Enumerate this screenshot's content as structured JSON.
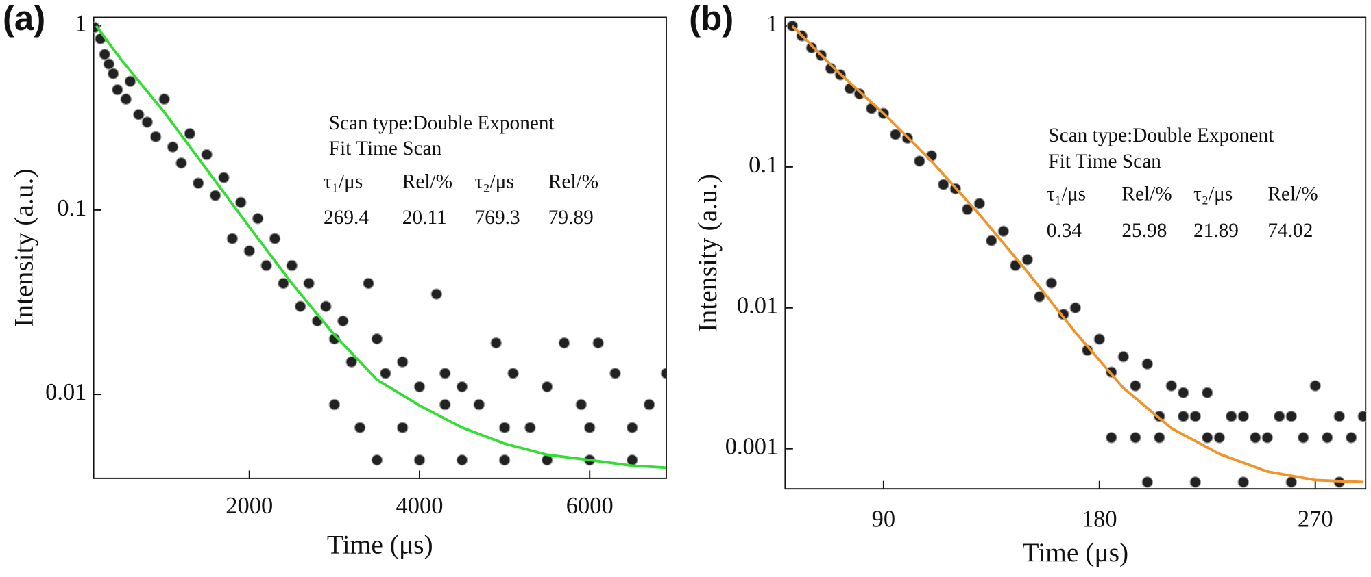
{
  "chart_data": [
    {
      "type": "scatter",
      "panel_label": "(a)",
      "y_label": "Intensity (a.u.)",
      "x_label": "Time (μs)",
      "log_y": true,
      "xlim": [
        170,
        6900
      ],
      "ylim": [
        0.0035,
        1.11
      ],
      "xticks": [
        2000,
        4000,
        6000
      ],
      "yticks": [
        1,
        0.1,
        0.01
      ],
      "scatter": {
        "color": "#222222",
        "x": [
          180,
          250,
          300,
          350,
          400,
          450,
          550,
          600,
          700,
          800,
          900,
          1000,
          1100,
          1200,
          1300,
          1400,
          1500,
          1600,
          1700,
          1800,
          1900,
          2000,
          2100,
          2200,
          2300,
          2400,
          2500,
          2600,
          2700,
          2800,
          2900,
          3000,
          3100,
          3200,
          3400,
          3500,
          3600,
          3800,
          4000,
          4200,
          4300,
          4500,
          4700,
          4900,
          5100,
          5300,
          5500,
          5700,
          5900,
          6100,
          6300,
          6500,
          6700,
          6900,
          3500,
          4000,
          4500,
          5000,
          5500,
          6000,
          6500,
          3000,
          3300,
          3800,
          4300,
          5000,
          6000
        ],
        "values": [
          0.98,
          0.85,
          0.7,
          0.62,
          0.55,
          0.45,
          0.4,
          0.5,
          0.33,
          0.3,
          0.25,
          0.4,
          0.22,
          0.18,
          0.26,
          0.14,
          0.2,
          0.12,
          0.15,
          0.07,
          0.11,
          0.06,
          0.09,
          0.05,
          0.07,
          0.04,
          0.05,
          0.03,
          0.04,
          0.025,
          0.03,
          0.02,
          0.025,
          0.015,
          0.04,
          0.02,
          0.013,
          0.015,
          0.011,
          0.035,
          0.013,
          0.011,
          0.0088,
          0.019,
          0.013,
          0.0066,
          0.011,
          0.019,
          0.0088,
          0.019,
          0.013,
          0.0066,
          0.0088,
          0.013,
          0.0044,
          0.0044,
          0.0044,
          0.0044,
          0.0044,
          0.0044,
          0.0044,
          0.0088,
          0.0066,
          0.0066,
          0.0088,
          0.0066,
          0.0066
        ]
      },
      "fit": {
        "color": "#33dd33",
        "x": [
          200,
          500,
          1000,
          1500,
          2000,
          2500,
          3000,
          3500,
          4000,
          4500,
          5000,
          5500,
          6000,
          6500,
          6900
        ],
        "values": [
          1,
          0.65,
          0.34,
          0.166,
          0.081,
          0.04,
          0.021,
          0.012,
          0.0087,
          0.0066,
          0.0054,
          0.0047,
          0.0044,
          0.0041,
          0.004
        ]
      },
      "annotation": {
        "lines": [
          "Scan type:Double Exponent",
          "Fit Time Scan"
        ],
        "table": [
          [
            "τ₁/μs",
            "Rel/%",
            "τ₂/μs",
            "Rel/%"
          ],
          [
            269.4,
            20.11,
            769.3,
            79.89
          ]
        ]
      }
    },
    {
      "type": "scatter",
      "panel_label": "(b)",
      "y_label": "Intensity (a.u.)",
      "x_label": "Time (μs)",
      "log_y": true,
      "xlim": [
        49,
        291
      ],
      "ylim": [
        0.00052,
        1.15
      ],
      "xticks": [
        90,
        180,
        270
      ],
      "yticks": [
        1,
        0.1,
        0.01,
        0.001
      ],
      "scatter": {
        "color": "#222222",
        "x": [
          52,
          56,
          60,
          64,
          68,
          72,
          76,
          80,
          85,
          90,
          95,
          100,
          105,
          110,
          115,
          120,
          125,
          130,
          135,
          140,
          145,
          150,
          155,
          160,
          165,
          170,
          175,
          180,
          185,
          190,
          195,
          200,
          205,
          210,
          215,
          220,
          225,
          230,
          240,
          250,
          260,
          270,
          280,
          290,
          185,
          195,
          205,
          215,
          225,
          235,
          245,
          255,
          265,
          275,
          285,
          200,
          220,
          240,
          260,
          280
        ],
        "values": [
          1.0,
          0.85,
          0.7,
          0.62,
          0.5,
          0.45,
          0.36,
          0.33,
          0.26,
          0.24,
          0.17,
          0.16,
          0.11,
          0.12,
          0.075,
          0.07,
          0.05,
          0.055,
          0.03,
          0.035,
          0.02,
          0.022,
          0.012,
          0.015,
          0.009,
          0.01,
          0.005,
          0.006,
          0.0035,
          0.0045,
          0.0028,
          0.004,
          0.0017,
          0.0028,
          0.0025,
          0.0017,
          0.0025,
          0.0012,
          0.0017,
          0.0012,
          0.0017,
          0.0028,
          0.0017,
          0.0017,
          0.0012,
          0.0012,
          0.0012,
          0.0017,
          0.0012,
          0.0017,
          0.0012,
          0.0017,
          0.0012,
          0.0012,
          0.0012,
          0.00058,
          0.00058,
          0.00058,
          0.00058,
          0.00058
        ]
      },
      "fit": {
        "color": "#f0932b",
        "x": [
          52,
          70,
          90,
          110,
          130,
          150,
          170,
          190,
          210,
          230,
          250,
          270,
          290
        ],
        "values": [
          1,
          0.49,
          0.24,
          0.11,
          0.046,
          0.018,
          0.0067,
          0.0027,
          0.0014,
          0.00092,
          0.00069,
          0.0006,
          0.00058
        ]
      },
      "annotation": {
        "lines": [
          "Scan type:Double Exponent",
          "Fit Time Scan"
        ],
        "table": [
          [
            "τ₁/μs",
            "Rel/%",
            "τ₂/μs",
            "Rel/%"
          ],
          [
            0.34,
            25.98,
            21.89,
            74.02
          ]
        ]
      }
    }
  ]
}
